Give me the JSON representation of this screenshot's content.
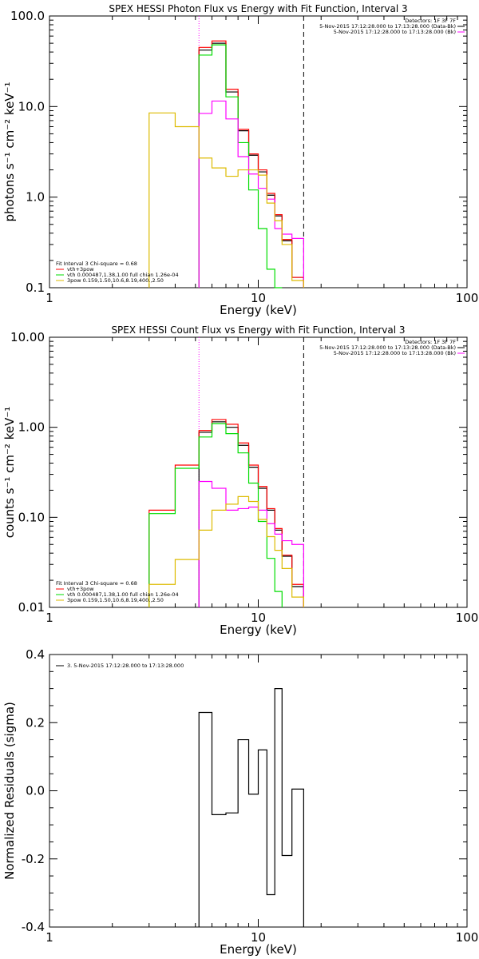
{
  "chart_data": [
    {
      "type": "line",
      "title": "SPEX HESSI Photon Flux vs Energy with Fit Function, Interval 3",
      "xlabel": "Energy (keV)",
      "ylabel": "photons s⁻¹ cm⁻² keV⁻¹",
      "xscale": "log",
      "yscale": "log",
      "xlim": [
        1,
        100
      ],
      "ylim": [
        0.1,
        100
      ],
      "xticks": [
        "1",
        "10",
        "100"
      ],
      "yticks": [
        "0.1",
        "1.0",
        "10.0",
        "100.0"
      ],
      "legend_top": [
        "Detectors: 1F 3F 7F",
        "5-Nov-2015 17:12:28.000 to 17:13:28.000 (Data-Bk)",
        "5-Nov-2015 17:12:28.000 to 17:13:28.000 (Bk)"
      ],
      "legend_bottom": [
        "Fit Interval 3   Chi-square = 0.68",
        "vth+3pow",
        "vth 0.000487,1.38,1.00  full chian 1.26e-04",
        "3pow 0.159,1.50,10.6,8.19,400.,2.50"
      ],
      "vlines": [
        {
          "x": 5.2,
          "style": "dotted",
          "color": "#ff00ff"
        },
        {
          "x": 16.5,
          "style": "dashed",
          "color": "#000000"
        }
      ],
      "bin_edges": [
        3.0,
        4.0,
        5.2,
        6.0,
        7.0,
        8.0,
        9.0,
        10.0,
        11.0,
        12.0,
        13.0,
        14.5,
        16.5
      ],
      "series": [
        {
          "color": "#000000",
          "values": [
            null,
            null,
            42,
            50,
            14.5,
            5.4,
            2.9,
            1.9,
            1.05,
            0.62,
            0.33,
            0.13
          ]
        },
        {
          "color": "#ff0000",
          "values": [
            null,
            null,
            45,
            53,
            15.5,
            5.6,
            3.0,
            2.0,
            1.1,
            0.64,
            0.34,
            0.13
          ]
        },
        {
          "color": "#00dd00",
          "values": [
            null,
            null,
            37,
            48,
            12.8,
            4.0,
            1.2,
            0.45,
            0.16,
            0.09,
            null,
            null
          ]
        },
        {
          "color": "#ff00ff",
          "values": [
            null,
            null,
            8.4,
            11.5,
            7.3,
            2.8,
            1.8,
            1.25,
            0.95,
            0.45,
            0.39,
            0.35
          ]
        },
        {
          "color": "#ddbb00",
          "values": [
            8.5,
            6.0,
            2.7,
            2.1,
            1.7,
            2.0,
            2.0,
            1.75,
            0.86,
            0.55,
            0.3,
            0.12
          ]
        }
      ]
    },
    {
      "type": "line",
      "title": "SPEX HESSI Count Flux vs Energy with Fit Function, Interval 3",
      "xlabel": "Energy (keV)",
      "ylabel": "counts s⁻¹ cm⁻² keV⁻¹",
      "xscale": "log",
      "yscale": "log",
      "xlim": [
        1,
        100
      ],
      "ylim": [
        0.01,
        10
      ],
      "xticks": [
        "1",
        "10",
        "100"
      ],
      "yticks": [
        "0.01",
        "0.10",
        "1.00",
        "10.00"
      ],
      "legend_top": [
        "Detectors: 1F 3F 7F",
        "5-Nov-2015 17:12:28.000 to 17:13:28.000 (Data-Bk)",
        "5-Nov-2015 17:12:28.000 to 17:13:28.000 (Bk)"
      ],
      "legend_bottom": [
        "Fit Interval 3   Chi-square = 0.68",
        "vth+3pow",
        "vth 0.000487,1.38,1.00  full chian 1.26e-04",
        "3pow 0.159,1.50,10.6,8.19,400.,2.50"
      ],
      "vlines": [
        {
          "x": 5.2,
          "style": "dotted",
          "color": "#ff00ff"
        },
        {
          "x": 16.5,
          "style": "dashed",
          "color": "#000000"
        }
      ],
      "bin_edges": [
        3.0,
        4.0,
        5.2,
        6.0,
        7.0,
        8.0,
        9.0,
        10.0,
        11.0,
        12.0,
        13.0,
        14.5,
        16.5
      ],
      "series": [
        {
          "color": "#000000",
          "values": [
            null,
            null,
            0.88,
            1.15,
            1.0,
            0.63,
            0.36,
            0.21,
            0.12,
            0.072,
            0.037,
            0.017
          ]
        },
        {
          "color": "#ff0000",
          "values": [
            0.12,
            0.38,
            0.92,
            1.22,
            1.08,
            0.67,
            0.38,
            0.22,
            0.125,
            0.075,
            0.038,
            0.018
          ]
        },
        {
          "color": "#00dd00",
          "values": [
            0.11,
            0.35,
            0.78,
            1.1,
            0.85,
            0.52,
            0.24,
            0.09,
            0.035,
            0.015,
            null,
            null
          ]
        },
        {
          "color": "#ff00ff",
          "values": [
            null,
            null,
            0.25,
            0.21,
            0.12,
            0.125,
            0.13,
            0.12,
            0.085,
            0.065,
            0.055,
            0.05
          ]
        },
        {
          "color": "#ddbb00",
          "values": [
            0.018,
            0.034,
            0.072,
            0.12,
            0.14,
            0.17,
            0.15,
            0.095,
            0.061,
            0.043,
            0.027,
            0.013
          ]
        }
      ]
    },
    {
      "type": "line",
      "title": "",
      "xlabel": "Energy (keV)",
      "ylabel": "Normalized Residuals (sigma)",
      "xscale": "log",
      "yscale": "linear",
      "xlim": [
        1,
        100
      ],
      "ylim": [
        -0.4,
        0.4
      ],
      "xticks": [
        "1",
        "10",
        "100"
      ],
      "yticks": [
        "-0.4",
        "-0.2",
        "0.0",
        "0.2",
        "0.4"
      ],
      "legend": [
        "3.  5-Nov-2015 17:12:28.000 to 17:13:28.000"
      ],
      "bin_edges": [
        5.2,
        6.0,
        7.0,
        8.0,
        9.0,
        10.0,
        11.0,
        12.0,
        13.0,
        14.5,
        16.5
      ],
      "series": [
        {
          "color": "#000000",
          "values": [
            0.23,
            -0.07,
            -0.065,
            0.15,
            -0.01,
            0.12,
            -0.305,
            0.3,
            -0.19,
            0.005
          ]
        }
      ]
    }
  ]
}
